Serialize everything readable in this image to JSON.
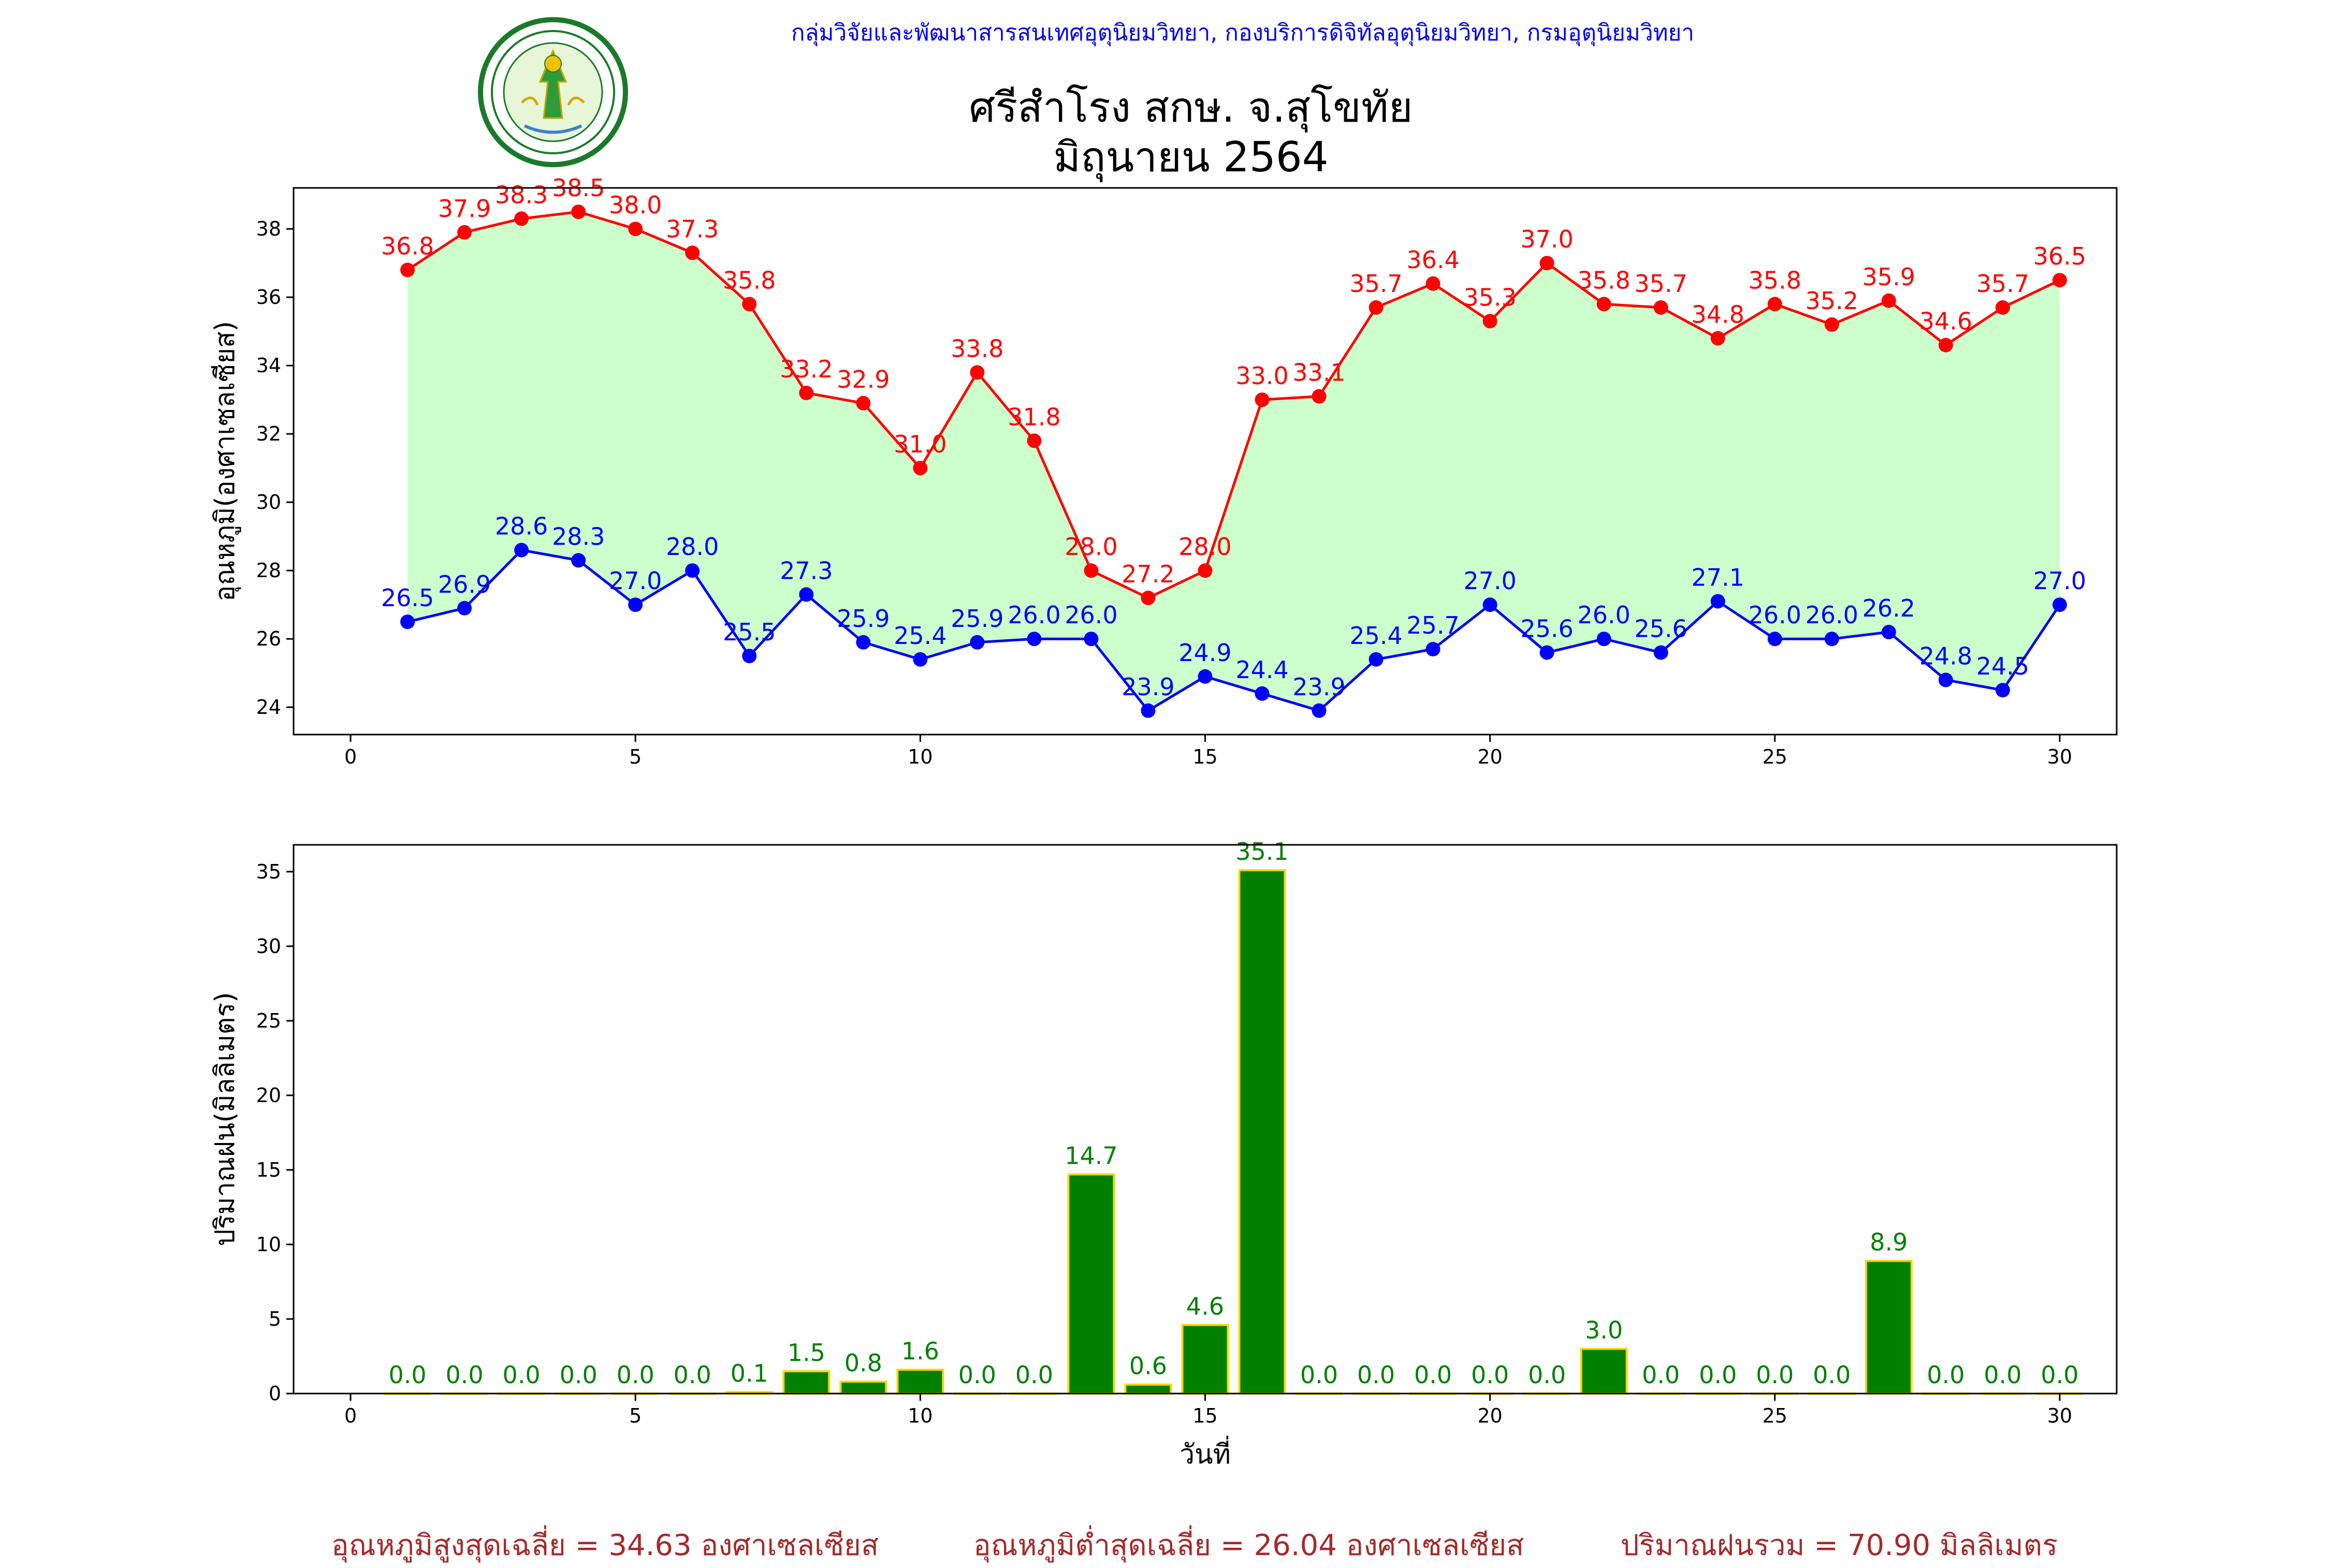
{
  "header": {
    "department_line": "กลุ่มวิจัยและพัฒนาสารสนเทศอุตุนิยมวิทยา, กองบริการดิจิทัลอุตุนิยมวิทยา, กรมอุตุนิยมวิทยา",
    "title_line1": "ศรีสำโรง สกษ. จ.สุโขทัย",
    "title_line2": "มิถุนายน 2564",
    "logo_icon": "meteorological-department-seal-icon"
  },
  "footer": {
    "avg_max": "อุณหภูมิสูงสุดเฉลี่ย = 34.63 องศาเซลเซียส",
    "avg_min": "อุณหภูมิต่ำสุดเฉลี่ย = 26.04 องศาเซลเซียส",
    "total_rain": "ปริมาณฝนรวม = 70.90 มิลลิเมตร"
  },
  "colors": {
    "max_temp": "#ff0000",
    "min_temp": "#0000ff",
    "fill": "#ccffcc",
    "rain_bar": "#008000",
    "rain_edge": "#ffd700",
    "rain_label": "#008000",
    "header_text": "#0000ff",
    "footer_text": "#a52a2a"
  },
  "chart_data": [
    {
      "type": "line",
      "ylabel": "อุณหภูมิ(องศาเซลเซียส)",
      "xlabel": "",
      "xlim": [
        -1,
        31
      ],
      "ylim": [
        23.2,
        39.2
      ],
      "xticks": [
        0,
        5,
        10,
        15,
        20,
        25,
        30
      ],
      "yticks": [
        24,
        26,
        28,
        30,
        32,
        34,
        36,
        38
      ],
      "fill_between": true,
      "x": [
        1,
        2,
        3,
        4,
        5,
        6,
        7,
        8,
        9,
        10,
        11,
        12,
        13,
        14,
        15,
        16,
        17,
        18,
        19,
        20,
        21,
        22,
        23,
        24,
        25,
        26,
        27,
        28,
        29,
        30
      ],
      "series": [
        {
          "key": "max",
          "values": [
            36.8,
            37.9,
            38.3,
            38.5,
            38.0,
            37.3,
            35.8,
            33.2,
            32.9,
            31.0,
            33.8,
            31.8,
            28.0,
            27.2,
            28.0,
            33.0,
            33.1,
            35.7,
            36.4,
            35.3,
            37.0,
            35.8,
            35.7,
            34.8,
            35.8,
            35.2,
            35.9,
            34.6,
            35.7,
            36.5
          ]
        },
        {
          "key": "min",
          "values": [
            26.5,
            26.9,
            28.6,
            28.3,
            27.0,
            28.0,
            25.5,
            27.3,
            25.9,
            25.4,
            25.9,
            26.0,
            26.0,
            23.9,
            24.9,
            24.4,
            23.9,
            25.4,
            25.7,
            27.0,
            25.6,
            26.0,
            25.6,
            27.1,
            26.0,
            26.0,
            26.2,
            24.8,
            24.5,
            27.0
          ]
        }
      ]
    },
    {
      "type": "bar",
      "ylabel": "ปริมาณฝน(มิลลิเมตร)",
      "xlabel": "วันที่",
      "xlim": [
        -1,
        31
      ],
      "ylim": [
        0,
        36.8
      ],
      "xticks": [
        0,
        5,
        10,
        15,
        20,
        25,
        30
      ],
      "yticks": [
        0,
        5,
        10,
        15,
        20,
        25,
        30,
        35
      ],
      "x": [
        1,
        2,
        3,
        4,
        5,
        6,
        7,
        8,
        9,
        10,
        11,
        12,
        13,
        14,
        15,
        16,
        17,
        18,
        19,
        20,
        21,
        22,
        23,
        24,
        25,
        26,
        27,
        28,
        29,
        30
      ],
      "values": [
        0.0,
        0.0,
        0.0,
        0.0,
        0.0,
        0.0,
        0.1,
        1.5,
        0.8,
        1.6,
        0.0,
        0.0,
        14.7,
        0.6,
        4.6,
        35.1,
        0.0,
        0.0,
        0.0,
        0.0,
        0.0,
        3.0,
        0.0,
        0.0,
        0.0,
        0.0,
        8.9,
        0.0,
        0.0,
        0.0
      ]
    }
  ]
}
